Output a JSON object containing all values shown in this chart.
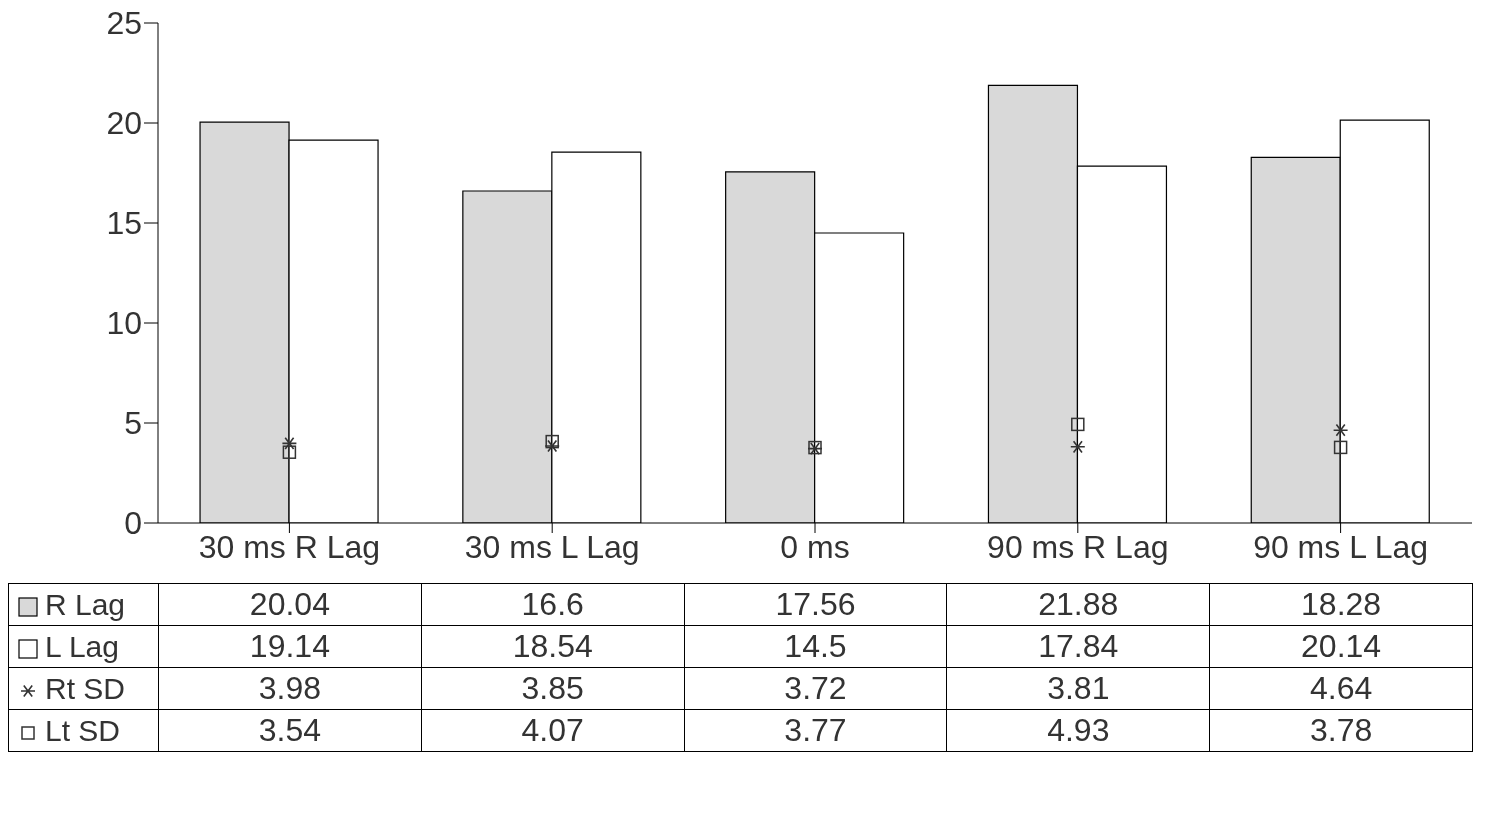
{
  "chart_data": {
    "type": "bar",
    "categories": [
      "30 ms R Lag",
      "30 ms L Lag",
      "0 ms",
      "90 ms R Lag",
      "90 ms L Lag"
    ],
    "series": [
      {
        "name": "R Lag",
        "color": "#d9d9d9",
        "values": [
          20.04,
          16.6,
          17.56,
          21.88,
          18.28
        ]
      },
      {
        "name": "L Lag",
        "color": "#ffffff",
        "values": [
          19.14,
          18.54,
          14.5,
          17.84,
          20.14
        ]
      },
      {
        "name": "Rt SD",
        "type": "scatter",
        "marker": "cross",
        "color": "#333333",
        "x": [
          "30 ms R Lag",
          "30 ms L Lag",
          "0 ms",
          "90 ms R Lag",
          "90 ms L Lag"
        ],
        "values": [
          3.98,
          3.85,
          3.72,
          3.81,
          4.64
        ]
      },
      {
        "name": "Lt SD",
        "type": "scatter",
        "marker": "square",
        "color": "#333333",
        "x": [
          "30 ms R Lag",
          "30 ms L Lag",
          "0 ms",
          "90 ms R Lag",
          "90 ms L Lag"
        ],
        "values": [
          3.54,
          4.07,
          3.77,
          4.93,
          3.78
        ]
      }
    ],
    "ylim": [
      0,
      25
    ],
    "yticks": [
      0,
      5,
      10,
      15,
      20,
      25
    ],
    "grid": false,
    "legend": "bottom left",
    "data_labels": true
  }
}
